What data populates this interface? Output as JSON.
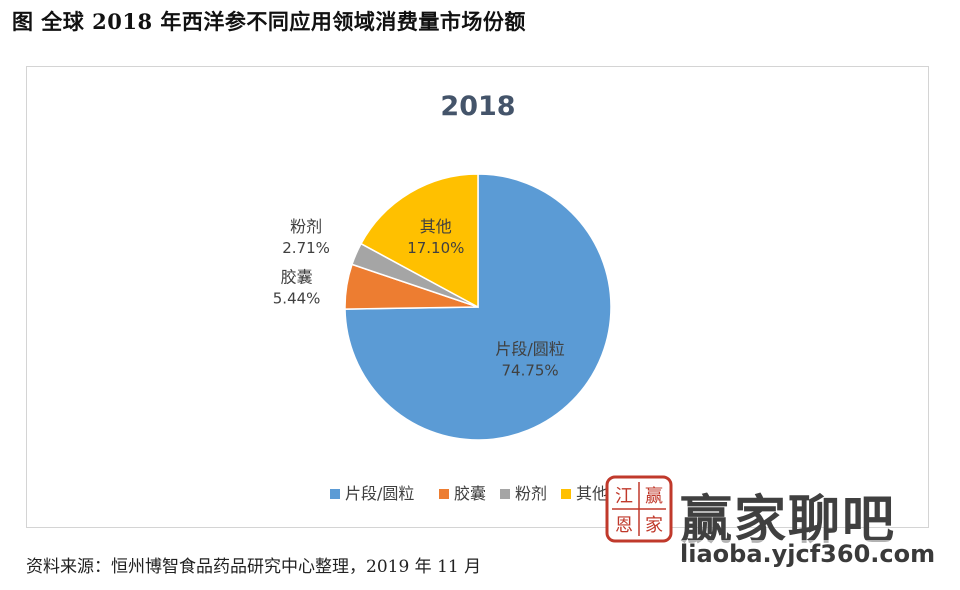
{
  "figure": {
    "title": "图  全球 2018 年西洋参不同应用领域消费量市场份额",
    "source": "资料来源：恒州博智食品药品研究中心整理，2019 年 11 月"
  },
  "chart_data": {
    "type": "pie",
    "title": "2018",
    "unit": "%",
    "slices": [
      {
        "name": "片段/圆粒",
        "value": 74.75,
        "label": "74.75%",
        "color": "#5b9bd5"
      },
      {
        "name": "胶囊",
        "value": 5.44,
        "label": "5.44%",
        "color": "#ed7d31"
      },
      {
        "name": "粉剂",
        "value": 2.71,
        "label": "2.71%",
        "color": "#a5a5a5"
      },
      {
        "name": "其他",
        "value": 17.1,
        "label": "17.10%",
        "color": "#ffc000"
      }
    ],
    "legend_position": "bottom"
  },
  "watermark": {
    "name": "赢家聊吧",
    "url": "liaoba.yjcf360.com",
    "seal_chars": [
      "江",
      "赢",
      "恩",
      "家"
    ]
  }
}
